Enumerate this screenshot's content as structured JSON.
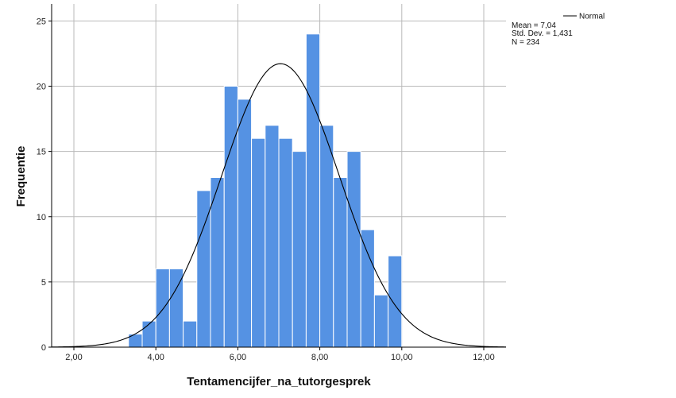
{
  "chart_data": {
    "type": "bar",
    "subtype": "histogram",
    "xlabel": "Tentamencijfer_na_tutorgesprek",
    "ylabel": "Frequentie",
    "xlim": [
      1.5,
      12.5
    ],
    "ylim": [
      0,
      26.5
    ],
    "x_ticks": [
      2,
      4,
      6,
      8,
      10,
      12
    ],
    "x_tick_labels": [
      "2,00",
      "4,00",
      "6,00",
      "8,00",
      "10,00",
      "12,00"
    ],
    "y_ticks": [
      0,
      5,
      10,
      15,
      20,
      25
    ],
    "y_tick_labels": [
      "0",
      "5",
      "10",
      "15",
      "20",
      "25"
    ],
    "grid": true,
    "bin_width": 0.333,
    "bins": [
      {
        "start": 3.333,
        "end": 3.667,
        "count": 1
      },
      {
        "start": 3.667,
        "end": 4.0,
        "count": 2
      },
      {
        "start": 4.0,
        "end": 4.333,
        "count": 6
      },
      {
        "start": 4.333,
        "end": 4.667,
        "count": 6
      },
      {
        "start": 4.667,
        "end": 5.0,
        "count": 2
      },
      {
        "start": 5.0,
        "end": 5.333,
        "count": 12
      },
      {
        "start": 5.333,
        "end": 5.667,
        "count": 13
      },
      {
        "start": 5.667,
        "end": 6.0,
        "count": 20
      },
      {
        "start": 6.0,
        "end": 6.333,
        "count": 19
      },
      {
        "start": 6.333,
        "end": 6.667,
        "count": 16
      },
      {
        "start": 6.667,
        "end": 7.0,
        "count": 17
      },
      {
        "start": 7.0,
        "end": 7.333,
        "count": 16
      },
      {
        "start": 7.333,
        "end": 7.667,
        "count": 15
      },
      {
        "start": 7.667,
        "end": 8.0,
        "count": 24
      },
      {
        "start": 8.0,
        "end": 8.333,
        "count": 17
      },
      {
        "start": 8.333,
        "end": 8.667,
        "count": 13
      },
      {
        "start": 8.667,
        "end": 9.0,
        "count": 15
      },
      {
        "start": 9.0,
        "end": 9.333,
        "count": 9
      },
      {
        "start": 9.333,
        "end": 9.667,
        "count": 4
      },
      {
        "start": 9.667,
        "end": 10.0,
        "count": 7
      }
    ],
    "normal_curve": {
      "mean": 7.04,
      "std_dev": 1.431,
      "n": 234
    },
    "legend": {
      "series_label": "Normal",
      "stats": [
        "Mean = 7,04",
        "Std. Dev. = 1,431",
        "N = 234"
      ],
      "position": "top-right"
    },
    "colors": {
      "bar_fill": "#5592e3",
      "bar_edge": "#ffffff",
      "curve": "#000000",
      "grid": "#b9b9b9"
    }
  }
}
